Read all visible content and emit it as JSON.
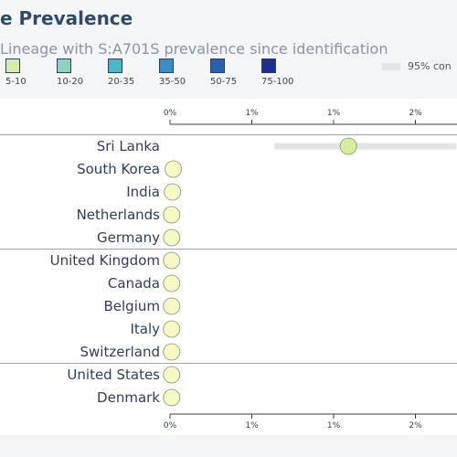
{
  "title": "e Prevalence",
  "subtitle": "Lineage with S:A701S prevalence since identification",
  "colors": {
    "ci_band": "#e3e4e6",
    "point_fill": "#f6f8c6",
    "point_fill_highlight": "#d6ec9e",
    "separator": "#a0a4aa",
    "axis": "#2f3e5c"
  },
  "legend": {
    "items": [
      {
        "label": "5-10",
        "color": "#d6ecb0"
      },
      {
        "label": "10-20",
        "color": "#8fd1c0"
      },
      {
        "label": "20-35",
        "color": "#4fb5c8"
      },
      {
        "label": "35-50",
        "color": "#3a8ec4"
      },
      {
        "label": "50-75",
        "color": "#2c5fae"
      },
      {
        "label": "75-100",
        "color": "#1f2f8e"
      }
    ],
    "ci_label": "95% con"
  },
  "chart_data": {
    "type": "scatter",
    "title": "e Prevalence",
    "subtitle": "Lineage with S:A701S prevalence since identification",
    "xlim": [
      0,
      3.5
    ],
    "x_ticks": [
      {
        "value": 0,
        "label": "0%"
      },
      {
        "value": 1,
        "label": "1%"
      },
      {
        "value": 2,
        "label": "1%"
      },
      {
        "value": 3,
        "label": "2%"
      }
    ],
    "points": [
      {
        "country": "Sri Lanka",
        "value": 2.18,
        "ci": [
          1.28,
          3.5
        ],
        "group": 0
      },
      {
        "country": "South Korea",
        "value": 0.04,
        "group": 0
      },
      {
        "country": "India",
        "value": 0.03,
        "group": 0
      },
      {
        "country": "Netherlands",
        "value": 0.02,
        "group": 0
      },
      {
        "country": "Germany",
        "value": 0.02,
        "group": 0
      },
      {
        "country": "United Kingdom",
        "value": 0.02,
        "group": 1
      },
      {
        "country": "Canada",
        "value": 0.02,
        "group": 1
      },
      {
        "country": "Belgium",
        "value": 0.02,
        "group": 1
      },
      {
        "country": "Italy",
        "value": 0.02,
        "group": 1
      },
      {
        "country": "Switzerland",
        "value": 0.02,
        "group": 1
      },
      {
        "country": "United States",
        "value": 0.02,
        "group": 2
      },
      {
        "country": "Denmark",
        "value": 0.02,
        "group": 2
      }
    ]
  }
}
